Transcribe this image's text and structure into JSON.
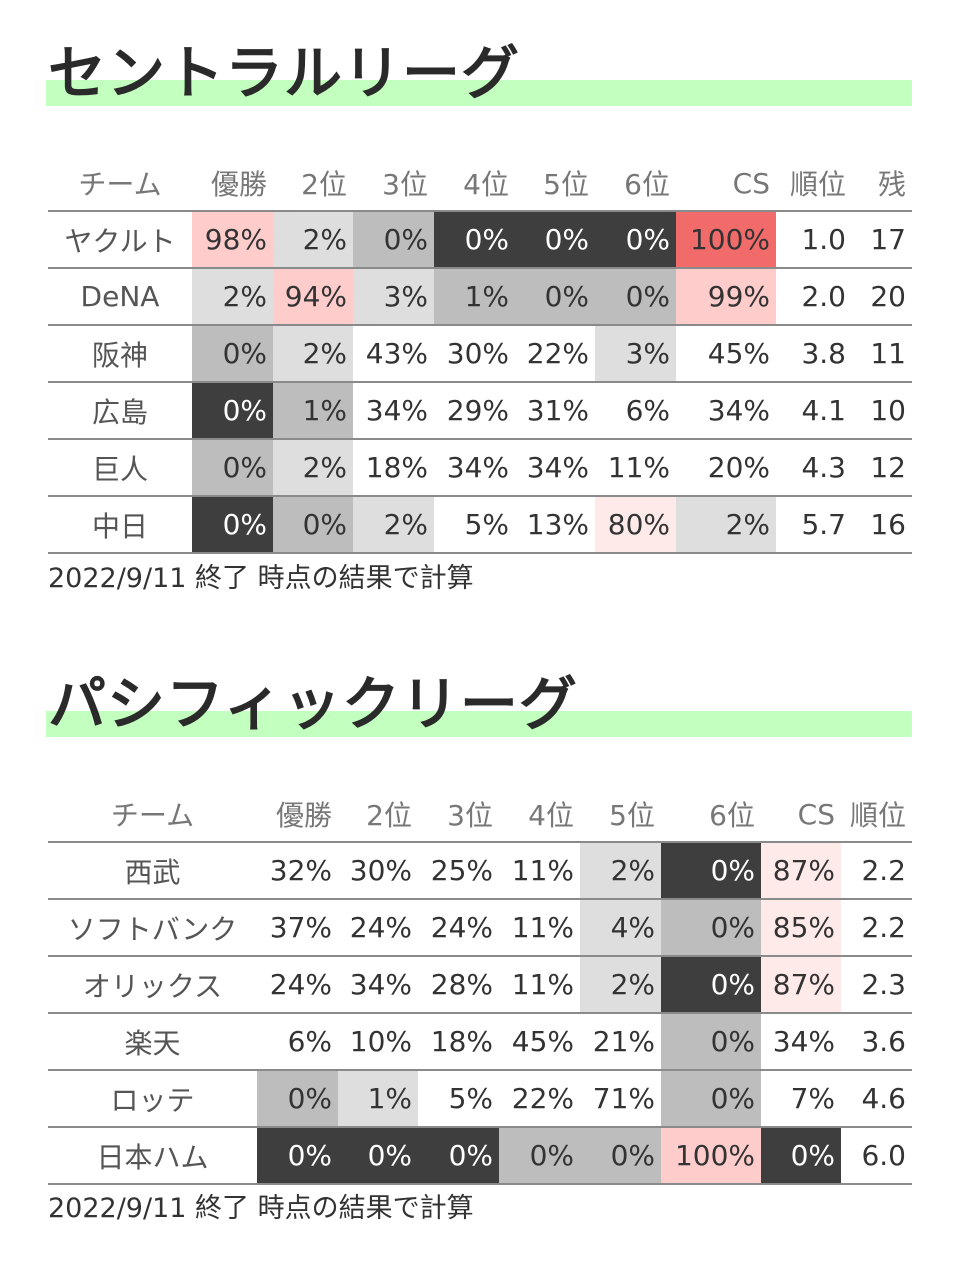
{
  "central": {
    "title": "セントラルリーグ",
    "headers": [
      "チーム",
      "優勝",
      "2位",
      "3位",
      "4位",
      "5位",
      "6位",
      "CS",
      "順位",
      "残"
    ],
    "rows": [
      {
        "team": "ヤクルト",
        "cells": [
          "98%",
          "2%",
          "0%",
          "0%",
          "0%",
          "0%",
          "100%",
          "1.0",
          "17"
        ],
        "shades": [
          "pk",
          "lt",
          "md",
          "dk",
          "dk",
          "dk",
          "rd",
          "",
          ""
        ]
      },
      {
        "team": "DeNA",
        "cells": [
          "2%",
          "94%",
          "3%",
          "1%",
          "0%",
          "0%",
          "99%",
          "2.0",
          "20"
        ],
        "shades": [
          "lt",
          "pk",
          "lt",
          "md",
          "md",
          "md",
          "pk",
          "",
          ""
        ]
      },
      {
        "team": "阪神",
        "cells": [
          "0%",
          "2%",
          "43%",
          "30%",
          "22%",
          "3%",
          "45%",
          "3.8",
          "11"
        ],
        "shades": [
          "md",
          "lt",
          "",
          "",
          "",
          "lt",
          "",
          "",
          ""
        ]
      },
      {
        "team": "広島",
        "cells": [
          "0%",
          "1%",
          "34%",
          "29%",
          "31%",
          "6%",
          "34%",
          "4.1",
          "10"
        ],
        "shades": [
          "dk",
          "md",
          "",
          "",
          "",
          "",
          "",
          "",
          ""
        ]
      },
      {
        "team": "巨人",
        "cells": [
          "0%",
          "2%",
          "18%",
          "34%",
          "34%",
          "11%",
          "20%",
          "4.3",
          "12"
        ],
        "shades": [
          "md",
          "lt",
          "",
          "",
          "",
          "",
          "",
          "",
          ""
        ]
      },
      {
        "team": "中日",
        "cells": [
          "0%",
          "0%",
          "2%",
          "5%",
          "13%",
          "80%",
          "2%",
          "5.7",
          "16"
        ],
        "shades": [
          "dk",
          "md",
          "lt",
          "",
          "",
          "pl",
          "lt",
          "",
          ""
        ]
      }
    ],
    "note": "2022/9/11 終了 時点の結果で計算"
  },
  "pacific": {
    "title": "パシフィックリーグ",
    "headers": [
      "チーム",
      "優勝",
      "2位",
      "3位",
      "4位",
      "5位",
      "6位",
      "CS",
      "順位"
    ],
    "rows": [
      {
        "team": "西武",
        "cells": [
          "32%",
          "30%",
          "25%",
          "11%",
          "2%",
          "0%",
          "87%",
          "2.2"
        ],
        "shades": [
          "",
          "",
          "",
          "",
          "lt",
          "dk",
          "pl",
          ""
        ]
      },
      {
        "team": "ソフトバンク",
        "cells": [
          "37%",
          "24%",
          "24%",
          "11%",
          "4%",
          "0%",
          "85%",
          "2.2"
        ],
        "shades": [
          "",
          "",
          "",
          "",
          "lt",
          "md",
          "pl",
          ""
        ]
      },
      {
        "team": "オリックス",
        "cells": [
          "24%",
          "34%",
          "28%",
          "11%",
          "2%",
          "0%",
          "87%",
          "2.3"
        ],
        "shades": [
          "",
          "",
          "",
          "",
          "lt",
          "dk",
          "pl",
          ""
        ]
      },
      {
        "team": "楽天",
        "cells": [
          "6%",
          "10%",
          "18%",
          "45%",
          "21%",
          "0%",
          "34%",
          "3.6"
        ],
        "shades": [
          "",
          "",
          "",
          "",
          "",
          "md",
          "",
          ""
        ]
      },
      {
        "team": "ロッテ",
        "cells": [
          "0%",
          "1%",
          "5%",
          "22%",
          "71%",
          "0%",
          "7%",
          "4.6"
        ],
        "shades": [
          "md",
          "lt",
          "",
          "",
          "",
          "md",
          "",
          ""
        ]
      },
      {
        "team": "日本ハム",
        "cells": [
          "0%",
          "0%",
          "0%",
          "0%",
          "0%",
          "100%",
          "0%",
          "6.0"
        ],
        "shades": [
          "dk",
          "dk",
          "dk",
          "md",
          "md",
          "pk",
          "dk",
          ""
        ]
      }
    ],
    "note": "2022/9/11 終了 時点の結果で計算"
  },
  "chart_data": [
    {
      "type": "table",
      "title": "セントラルリーグ",
      "columns": [
        "チーム",
        "優勝",
        "2位",
        "3位",
        "4位",
        "5位",
        "6位",
        "CS",
        "順位",
        "残"
      ],
      "rows": [
        [
          "ヤクルト",
          "98%",
          "2%",
          "0%",
          "0%",
          "0%",
          "0%",
          "100%",
          "1.0",
          "17"
        ],
        [
          "DeNA",
          "2%",
          "94%",
          "3%",
          "1%",
          "0%",
          "0%",
          "99%",
          "2.0",
          "20"
        ],
        [
          "阪神",
          "0%",
          "2%",
          "43%",
          "30%",
          "22%",
          "3%",
          "45%",
          "3.8",
          "11"
        ],
        [
          "広島",
          "0%",
          "1%",
          "34%",
          "29%",
          "31%",
          "6%",
          "34%",
          "4.1",
          "10"
        ],
        [
          "巨人",
          "0%",
          "2%",
          "18%",
          "34%",
          "34%",
          "11%",
          "20%",
          "4.3",
          "12"
        ],
        [
          "中日",
          "0%",
          "0%",
          "2%",
          "5%",
          "13%",
          "80%",
          "2%",
          "5.7",
          "16"
        ]
      ]
    },
    {
      "type": "table",
      "title": "パシフィックリーグ",
      "columns": [
        "チーム",
        "優勝",
        "2位",
        "3位",
        "4位",
        "5位",
        "6位",
        "CS",
        "順位"
      ],
      "rows": [
        [
          "西武",
          "32%",
          "30%",
          "25%",
          "11%",
          "2%",
          "0%",
          "87%",
          "2.2"
        ],
        [
          "ソフトバンク",
          "37%",
          "24%",
          "24%",
          "11%",
          "4%",
          "0%",
          "85%",
          "2.2"
        ],
        [
          "オリックス",
          "24%",
          "34%",
          "28%",
          "11%",
          "2%",
          "0%",
          "87%",
          "2.3"
        ],
        [
          "楽天",
          "6%",
          "10%",
          "18%",
          "45%",
          "21%",
          "0%",
          "34%",
          "3.6"
        ],
        [
          "ロッテ",
          "0%",
          "1%",
          "5%",
          "22%",
          "71%",
          "0%",
          "7%",
          "4.6"
        ],
        [
          "日本ハム",
          "0%",
          "0%",
          "0%",
          "0%",
          "0%",
          "100%",
          "0%",
          "6.0"
        ]
      ]
    }
  ]
}
